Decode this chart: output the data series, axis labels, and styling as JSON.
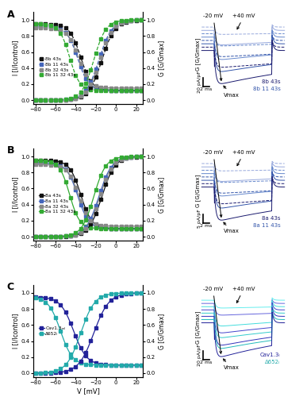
{
  "panels": [
    {
      "label": "A",
      "curves": [
        {
          "color": "#111111",
          "marker": "s",
          "ls": "--",
          "legend": "8b 43s",
          "iv_v50": -35,
          "iv_k": 5.5,
          "iv_max": 0.95,
          "iv_min": 0.12,
          "gv_v50": -14,
          "gv_k": 6.5
        },
        {
          "color": "#4466bb",
          "marker": "s",
          "ls": "--",
          "legend": "8b 11 43s",
          "iv_v50": -38,
          "iv_k": 5.5,
          "iv_max": 0.92,
          "iv_min": 0.12,
          "gv_v50": -17,
          "gv_k": 6.5
        },
        {
          "color": "#888888",
          "marker": "s",
          "ls": "--",
          "legend": "8b 32 43s",
          "iv_v50": -37,
          "iv_k": 5.5,
          "iv_max": 0.9,
          "iv_min": 0.15,
          "gv_v50": -16,
          "gv_k": 6.5
        },
        {
          "color": "#33aa33",
          "marker": "s",
          "ls": "--",
          "legend": "8b 11 32 43s",
          "iv_v50": -46,
          "iv_k": 5.0,
          "iv_max": 0.95,
          "iv_min": 0.12,
          "gv_v50": -22,
          "gv_k": 6.0
        }
      ],
      "trace_colors": [
        "#1a1a6e",
        "#1a1a6e",
        "#3355aa",
        "#3355aa",
        "#6688cc",
        "#6688cc",
        "#99aadd",
        "#99aadd"
      ],
      "trace_dashes": [
        false,
        true,
        false,
        true,
        false,
        true,
        false,
        true
      ],
      "trace_amps": [
        4.2,
        2.5,
        3.5,
        2.0,
        2.8,
        1.5,
        1.8,
        0.9
      ],
      "trace_taus": [
        1.8,
        3.0,
        2.0,
        3.5,
        2.5,
        4.0,
        3.0,
        5.0
      ],
      "trace_l1": "8b 43s",
      "trace_l2": "8b 11 43s",
      "trace_col1": "#1a1a6e",
      "trace_col2": "#3355aa",
      "scale_label": "20 pA/pF"
    },
    {
      "label": "B",
      "curves": [
        {
          "color": "#111111",
          "marker": "s",
          "ls": "-",
          "legend": "8a 43s",
          "iv_v50": -35,
          "iv_k": 5.5,
          "iv_max": 0.95,
          "iv_min": 0.1,
          "gv_v50": -14,
          "gv_k": 6.5
        },
        {
          "color": "#4466bb",
          "marker": "s",
          "ls": "-",
          "legend": "8a 11 43s",
          "iv_v50": -38,
          "iv_k": 5.5,
          "iv_max": 0.92,
          "iv_min": 0.1,
          "gv_v50": -17,
          "gv_k": 6.5
        },
        {
          "color": "#888888",
          "marker": "s",
          "ls": "-",
          "legend": "8a 32 43s",
          "iv_v50": -37,
          "iv_k": 5.5,
          "iv_max": 0.9,
          "iv_min": 0.13,
          "gv_v50": -16,
          "gv_k": 6.5
        },
        {
          "color": "#33aa33",
          "marker": "s",
          "ls": "-",
          "legend": "8a 11 32 43s",
          "iv_v50": -46,
          "iv_k": 5.0,
          "iv_max": 0.95,
          "iv_min": 0.1,
          "gv_v50": -22,
          "gv_k": 6.0
        }
      ],
      "trace_colors": [
        "#1a1a6e",
        "#1a1a6e",
        "#3355aa",
        "#3355aa",
        "#6688cc",
        "#6688cc",
        "#99aadd",
        "#99aadd"
      ],
      "trace_dashes": [
        false,
        true,
        false,
        true,
        false,
        true,
        false,
        true
      ],
      "trace_amps": [
        4.2,
        2.5,
        3.5,
        2.0,
        2.8,
        1.5,
        1.8,
        0.9
      ],
      "trace_taus": [
        1.8,
        3.0,
        2.0,
        3.5,
        2.5,
        4.0,
        3.0,
        5.0
      ],
      "trace_l1": "8a 43s",
      "trace_l2": "8a 11 43s",
      "trace_col1": "#1a1a6e",
      "trace_col2": "#3355aa",
      "scale_label": "5 pA/pF"
    },
    {
      "label": "C",
      "curves": [
        {
          "color": "#222299",
          "marker": "s",
          "ls": "-",
          "legend": "Cav1.3ₘₗ",
          "iv_v50": -42,
          "iv_k": 6.5,
          "iv_max": 0.95,
          "iv_min": 0.1,
          "gv_v50": -22,
          "gv_k": 7.5
        },
        {
          "color": "#22aaaa",
          "marker": "s",
          "ls": "-",
          "legend": "Δ652ₗ",
          "iv_v50": -55,
          "iv_k": 6.0,
          "iv_max": 0.95,
          "iv_min": 0.1,
          "gv_v50": -35,
          "gv_k": 7.0
        }
      ],
      "trace_colors": [
        "#222299",
        "#22bbbb",
        "#3333bb",
        "#33cccc",
        "#4444cc",
        "#44dddd",
        "#6666dd",
        "#66eeee"
      ],
      "trace_dashes": [
        false,
        false,
        false,
        false,
        false,
        false,
        false,
        false
      ],
      "trace_amps": [
        4.5,
        3.8,
        3.8,
        3.2,
        3.0,
        2.5,
        1.5,
        1.0
      ],
      "trace_taus": [
        1.5,
        1.8,
        1.8,
        2.2,
        2.2,
        2.8,
        3.5,
        4.0
      ],
      "trace_l1": "Cav1.3ₗ",
      "trace_l2": "Δ652ₗ",
      "trace_col1": "#222299",
      "trace_col2": "#22aaaa",
      "scale_label": "20 pA/pF"
    }
  ],
  "xlim": [
    -82,
    27
  ],
  "ylim": [
    -0.05,
    1.1
  ],
  "xticks": [
    -80,
    -60,
    -40,
    -20,
    0,
    20
  ],
  "yticks": [
    0.0,
    0.2,
    0.4,
    0.6,
    0.8,
    1.0
  ],
  "xlabel": "V [mV]",
  "ylabel_l": "I [I/Icontrol]",
  "ylabel_r": "G [G/Gmax]",
  "bg": "#ffffff"
}
